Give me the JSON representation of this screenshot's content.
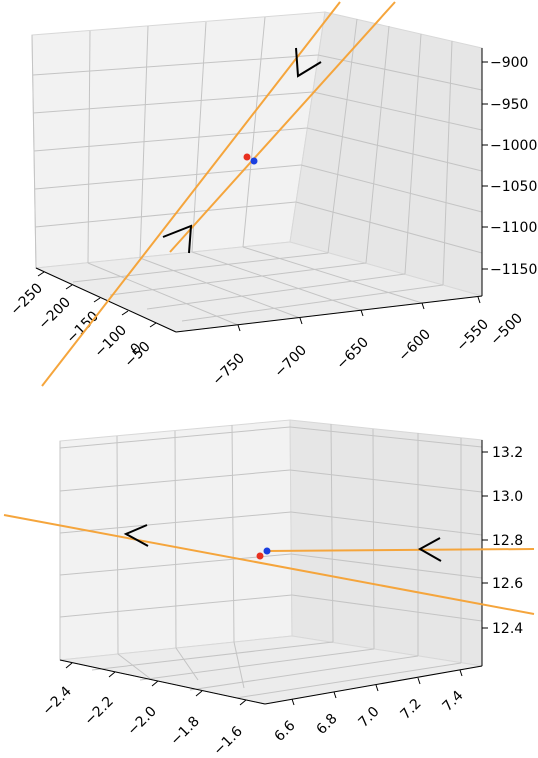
{
  "chart_data": [
    {
      "type": "line",
      "projection": "3d",
      "grid": true,
      "x_ticks": [
        "−250",
        "−200",
        "−150",
        "−100",
        "−50",
        "0"
      ],
      "y_ticks": [
        "−750",
        "−700",
        "−650",
        "−600",
        "−550",
        "−500"
      ],
      "z_ticks": [
        "−900",
        "−950",
        "−1000",
        "−1050",
        "−1100",
        "−1150"
      ],
      "colors": {
        "line": "#f5a53c",
        "point_a": "#e83020",
        "point_b": "#1a3fe0",
        "marker": "#000000"
      }
    },
    {
      "type": "line",
      "projection": "3d",
      "grid": true,
      "x_ticks": [
        "−2.4",
        "−2.2",
        "−2.0",
        "−1.8",
        "−1.6"
      ],
      "y_ticks": [
        "6.6",
        "6.8",
        "7.0",
        "7.2",
        "7.4"
      ],
      "z_ticks": [
        "13.2",
        "13.0",
        "12.8",
        "12.6",
        "12.4"
      ],
      "colors": {
        "line": "#f5a53c",
        "point_a": "#e83020",
        "point_b": "#1a3fe0",
        "marker": "#000000"
      }
    }
  ]
}
